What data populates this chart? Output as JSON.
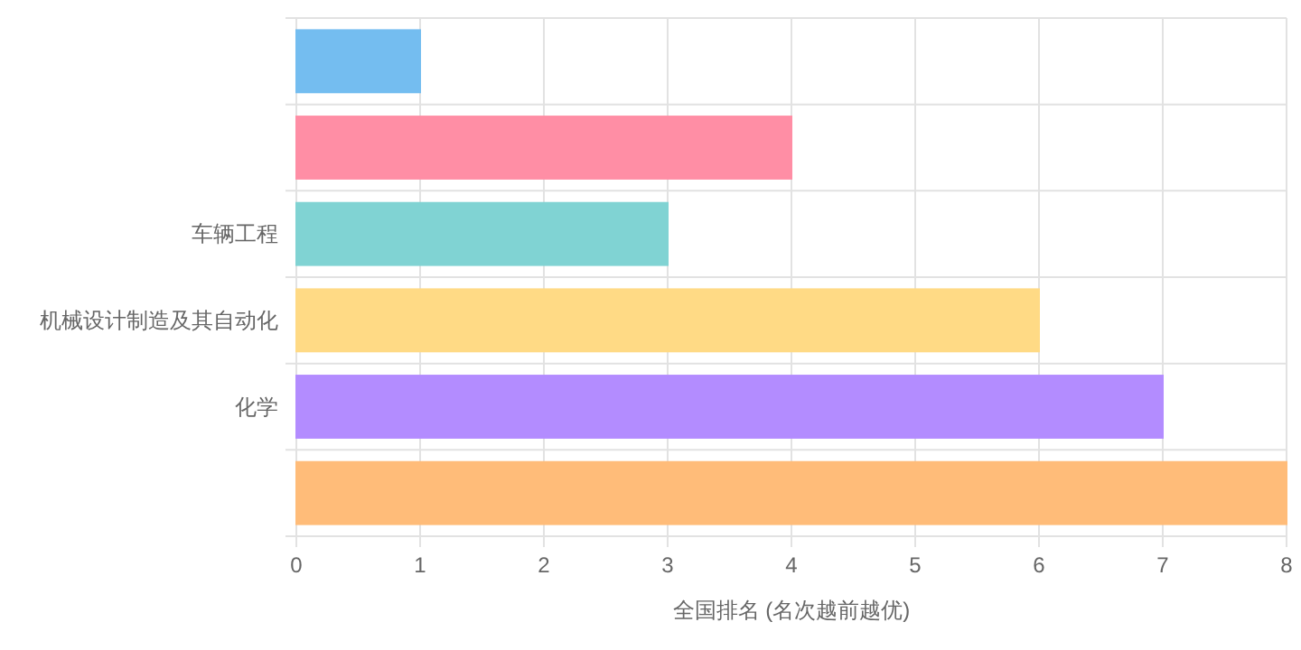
{
  "chart_data": {
    "type": "bar",
    "orientation": "horizontal",
    "categories": [
      null,
      null,
      "车辆工程",
      "机械设计制造及其自动化",
      "化学",
      null
    ],
    "values": [
      1,
      4,
      3,
      6,
      7,
      8
    ],
    "colors": [
      "#74bdf0",
      "#ff8ea5",
      "#80d3d3",
      "#ffda85",
      "#b38cff",
      "#ffbc79"
    ],
    "xlim": [
      0,
      8
    ],
    "xticks": [
      0,
      1,
      2,
      3,
      4,
      5,
      6,
      7,
      8
    ],
    "xlabel": "全国排名 (名次越前越优)",
    "grid": true
  }
}
